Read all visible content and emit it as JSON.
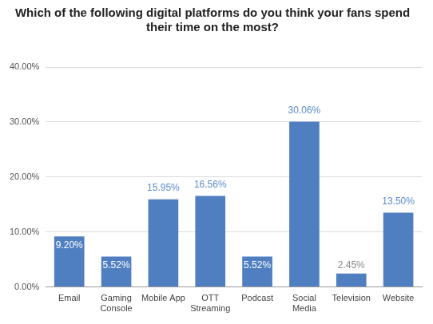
{
  "chart_data": {
    "type": "bar",
    "title": "Which of the following digital platforms do you think your fans spend their time on the most?",
    "categories": [
      "Email",
      "Gaming Console",
      "Mobile App",
      "OTT Streaming",
      "Podcast",
      "Social Media",
      "Television",
      "Website"
    ],
    "values": [
      9.2,
      5.52,
      15.95,
      16.56,
      5.52,
      30.06,
      2.45,
      13.5
    ],
    "value_labels": [
      "9.20%",
      "5.52%",
      "15.95%",
      "16.56%",
      "5.52%",
      "30.06%",
      "2.45%",
      "13.50%"
    ],
    "color": "#4f7fc1",
    "ylim": [
      0,
      40
    ],
    "yticks": [
      {
        "value": 0,
        "label": "0.00%"
      },
      {
        "value": 10,
        "label": "10.00%"
      },
      {
        "value": 20,
        "label": "20.00%"
      },
      {
        "value": 30,
        "label": "30.00%"
      },
      {
        "value": 40,
        "label": "40.00%"
      }
    ],
    "grid": true,
    "data_labels": true
  }
}
